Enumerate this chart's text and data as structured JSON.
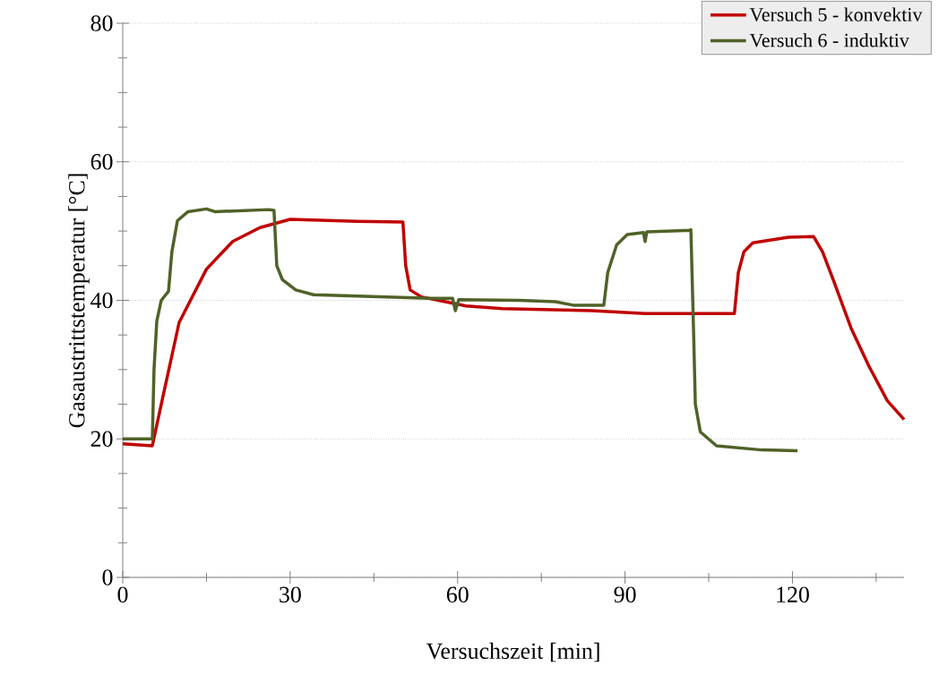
{
  "chart_data": {
    "type": "line",
    "xlabel": "Versuchszeit  [min]",
    "ylabel": "Gasaustrittstemperatur [°C]",
    "xlim": [
      0,
      140
    ],
    "ylim": [
      0,
      80
    ],
    "xticks": [
      0,
      {
        "value": 15,
        "label": null
      },
      30,
      {
        "value": 45,
        "label": null
      },
      60,
      {
        "value": 75,
        "label": null
      },
      90,
      {
        "value": 105,
        "label": null
      },
      120,
      {
        "value": 135,
        "label": null
      }
    ],
    "yticks": [
      0,
      {
        "value": 5,
        "label": null
      },
      {
        "value": 10,
        "label": null
      },
      {
        "value": 15,
        "label": null
      },
      20,
      {
        "value": 25,
        "label": null
      },
      {
        "value": 30,
        "label": null
      },
      {
        "value": 35,
        "label": null
      },
      40,
      {
        "value": 45,
        "label": null
      },
      {
        "value": 50,
        "label": null
      },
      {
        "value": 55,
        "label": null
      },
      60,
      {
        "value": 65,
        "label": null
      },
      {
        "value": 70,
        "label": null
      },
      {
        "value": 75,
        "label": null
      },
      80
    ],
    "grid": "y",
    "legend": "top right",
    "marker": "none",
    "line_style": "solid",
    "series": [
      {
        "name": "Versuch 5 - konvektiv",
        "color": "#c00000",
        "x": [
          0,
          5.3,
          6.9,
          10.1,
          15,
          19.7,
          24.6,
          30,
          42,
          50.2,
          50.7,
          51.5,
          53.5,
          61.5,
          68,
          84,
          93.6,
          109.6,
          110.3,
          111.3,
          112.9,
          119.3,
          123.8,
          125.4,
          127.3,
          130.5,
          133.7,
          137,
          140
        ],
        "values": [
          19.3,
          19,
          25,
          36.8,
          44.5,
          48.5,
          50.5,
          51.7,
          51.4,
          51.3,
          45,
          41.5,
          40.5,
          39.2,
          38.8,
          38.5,
          38.1,
          38.1,
          44,
          47,
          48.3,
          49.1,
          49.2,
          47,
          43,
          36,
          30.5,
          25.5,
          22.8
        ]
      },
      {
        "name": "Versuch 6 - induktiv",
        "color": "#4f6228",
        "x": [
          0,
          5.3,
          5.6,
          6.1,
          6.9,
          8.2,
          8.8,
          9.8,
          11.7,
          15,
          16.5,
          26.2,
          27.1,
          27.6,
          28.6,
          31,
          34.2,
          42.2,
          55,
          59.1,
          59.6,
          60.2,
          71.1,
          77.5,
          80.7,
          86.2,
          86.9,
          88.5,
          90.4,
          93.3,
          93.6,
          93.9,
          101.6,
          101.8,
          102.3,
          102.6,
          103.5,
          106.4,
          114.5,
          120.9
        ],
        "values": [
          20,
          20,
          30,
          37,
          40,
          41.3,
          47,
          51.5,
          52.8,
          53.2,
          52.8,
          53.1,
          53,
          45,
          43,
          41.5,
          40.8,
          40.6,
          40.3,
          40.3,
          38.5,
          40.1,
          40,
          39.8,
          39.3,
          39.3,
          44,
          48,
          49.5,
          49.8,
          48.5,
          49.9,
          50.1,
          50.2,
          35,
          25,
          21,
          19,
          18.4,
          18.3
        ]
      }
    ]
  }
}
